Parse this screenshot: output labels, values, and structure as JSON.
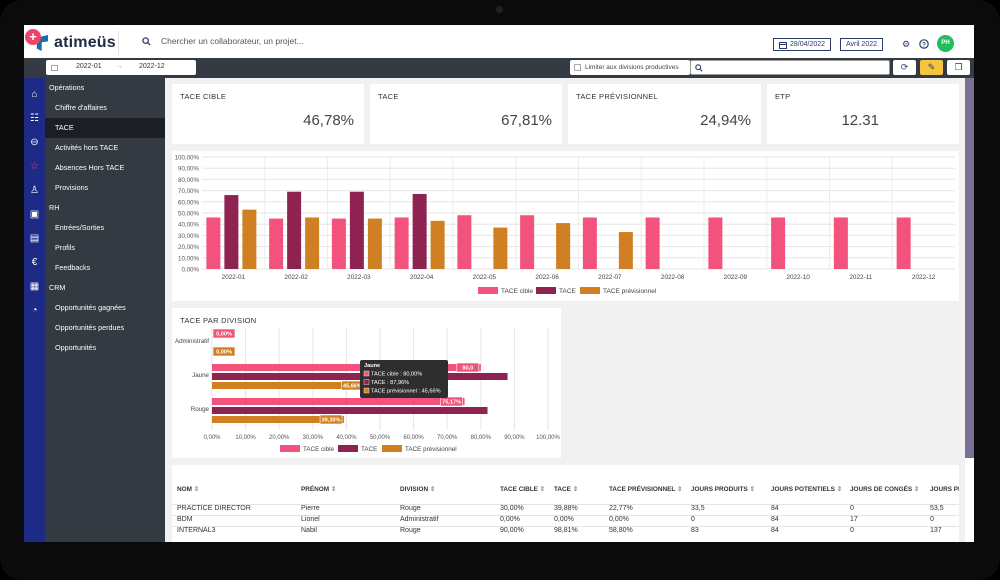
{
  "header": {
    "logo": "atimeüs",
    "search_placeholder": "Chercher un collaborateur, un projet...",
    "date": "28/04/2022",
    "period": "Avril 2022",
    "avatar": "PH"
  },
  "filters": {
    "start": "2022-01",
    "end": "2022-12",
    "limit_label": "Limiter aux divisions productives"
  },
  "menu": {
    "items": [
      {
        "label": "Opérations",
        "type": "section"
      },
      {
        "label": "Chiffre d'affaires",
        "type": "item"
      },
      {
        "label": "TACE",
        "type": "item"
      },
      {
        "label": "Activités hors TACE",
        "type": "item"
      },
      {
        "label": "Absences Hors TACE",
        "type": "item"
      },
      {
        "label": "Provisions",
        "type": "item"
      },
      {
        "label": "RH",
        "type": "section"
      },
      {
        "label": "Entrées/Sorties",
        "type": "item"
      },
      {
        "label": "Profils",
        "type": "item"
      },
      {
        "label": "Feedbacks",
        "type": "item"
      },
      {
        "label": "CRM",
        "type": "section"
      },
      {
        "label": "Opportunités gagnées",
        "type": "item"
      },
      {
        "label": "Opportunités perdues",
        "type": "item"
      },
      {
        "label": "Opportunités",
        "type": "item"
      }
    ],
    "active": "TACE"
  },
  "rail_icons": [
    "home-icon",
    "list-icon",
    "arrow-left-circle-icon",
    "star-icon",
    "person-icon",
    "box-icon",
    "id-card-icon",
    "euro-icon",
    "calendar-icon",
    "pie-chart-icon"
  ],
  "kpis": [
    {
      "label": "TACE CIBLE",
      "value": "46,78%"
    },
    {
      "label": "TACE",
      "value": "67,81%"
    },
    {
      "label": "TACE PRÉVISIONNEL",
      "value": "24,94%"
    },
    {
      "label": "ETP",
      "value": "12.31"
    }
  ],
  "colors": {
    "cible": "#f2527b",
    "tace": "#8e2352",
    "prev": "#d08023"
  },
  "chart_data": [
    {
      "type": "bar",
      "categories": [
        "2022-01",
        "2022-02",
        "2022-03",
        "2022-04",
        "2022-05",
        "2022-06",
        "2022-07",
        "2022-08",
        "2022-09",
        "2022-10",
        "2022-11",
        "2022-12"
      ],
      "series": [
        {
          "name": "TACE cible",
          "values": [
            46,
            45,
            45,
            46,
            48,
            48,
            46,
            46,
            46,
            46,
            46,
            46
          ]
        },
        {
          "name": "TACE",
          "values": [
            66,
            69,
            69,
            67,
            null,
            null,
            null,
            null,
            null,
            null,
            null,
            null
          ]
        },
        {
          "name": "TACE prévisionnel",
          "values": [
            53,
            46,
            45,
            43,
            37,
            41,
            33,
            null,
            null,
            null,
            null,
            null
          ]
        }
      ],
      "yticks": [
        "0,00%",
        "10,00%",
        "20,00%",
        "30,00%",
        "40,00%",
        "50,00%",
        "60,00%",
        "70,00%",
        "80,00%",
        "90,00%",
        "100,00%"
      ],
      "ylim": [
        0,
        100
      ]
    },
    {
      "type": "bar",
      "orientation": "horizontal",
      "title": "TACE PAR DIVISION",
      "categories": [
        "Administratif",
        "Jaune",
        "Rouge"
      ],
      "series": [
        {
          "name": "TACE cible",
          "values": [
            0,
            80,
            75.17
          ]
        },
        {
          "name": "TACE",
          "values": [
            0,
            87.96,
            82
          ]
        },
        {
          "name": "TACE prévisionnel",
          "values": [
            0,
            45.66,
            39.3
          ]
        }
      ],
      "data_labels": {
        "admin_cible": "0,00%",
        "admin_prev": "0,00%",
        "jaune_cible": "80,0",
        "jaune_prev": "45,66%",
        "rouge_cible": "75,17%",
        "rouge_prev": "39,30%"
      },
      "xticks": [
        "0,00%",
        "10,00%",
        "20,00%",
        "30,00%",
        "40,00%",
        "50,00%",
        "60,00%",
        "70,00%",
        "80,00%",
        "90,00%",
        "100,00%"
      ],
      "xlim": [
        0,
        100
      ],
      "tooltip": {
        "title": "Jaune",
        "lines": [
          "TACE cible : 80,00%",
          "TACE : 87,96%",
          "TACE prévisionnel : 45,66%"
        ]
      }
    }
  ],
  "table": {
    "headers": [
      "NOM",
      "PRÉNOM",
      "DIVISION",
      "TACE CIBLE",
      "TACE",
      "TACE PRÉVISIONNEL",
      "JOURS PRODUITS",
      "JOURS POTENTIELS",
      "JOURS DE CONGÉS",
      "JOURS PR"
    ],
    "rows": [
      [
        "PRACTICE DIRECTOR",
        "Pierre",
        "Rouge",
        "30,00%",
        "39,88%",
        "22,77%",
        "33,5",
        "84",
        "0",
        "53,5"
      ],
      [
        "BDM",
        "Lionel",
        "Administratif",
        "0,00%",
        "0,00%",
        "0,00%",
        "0",
        "84",
        "17",
        "0"
      ],
      [
        "INTERNAL3",
        "Nabil",
        "Rouge",
        "90,00%",
        "98,81%",
        "58,80%",
        "83",
        "84",
        "0",
        "137"
      ]
    ]
  }
}
